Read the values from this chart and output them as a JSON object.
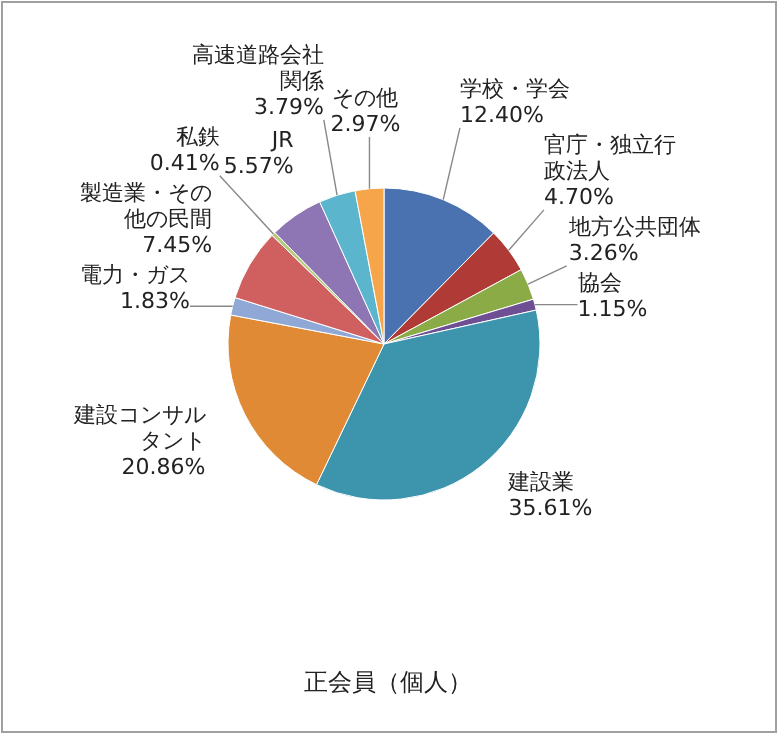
{
  "chart_data": {
    "type": "pie",
    "title": "正会員（個人）",
    "categories": [
      "学校・学会",
      "官庁・独立行政法人",
      "地方公共団体",
      "協会",
      "建設業",
      "建設コンサルタント",
      "電力・ガス",
      "製造業・その他の民間",
      "私鉄",
      "JR",
      "高速道路会社関係",
      "その他"
    ],
    "values": [
      12.4,
      4.7,
      3.26,
      1.15,
      35.61,
      20.86,
      1.83,
      7.45,
      0.41,
      5.57,
      3.79,
      2.97
    ],
    "colors": [
      "#4a72b0",
      "#b03a36",
      "#8aab45",
      "#6f4f94",
      "#3d94ad",
      "#e08a35",
      "#8fa8d5",
      "#d06060",
      "#b5cc7e",
      "#8e75b3",
      "#5bb5cc",
      "#f7a54a"
    ],
    "value_labels": [
      "12.40%",
      "4.70%",
      "3.26%",
      "1.15%",
      "35.61%",
      "20.86%",
      "1.83%",
      "7.45%",
      "0.41%",
      "5.57%",
      "3.79%",
      "2.97%"
    ]
  }
}
